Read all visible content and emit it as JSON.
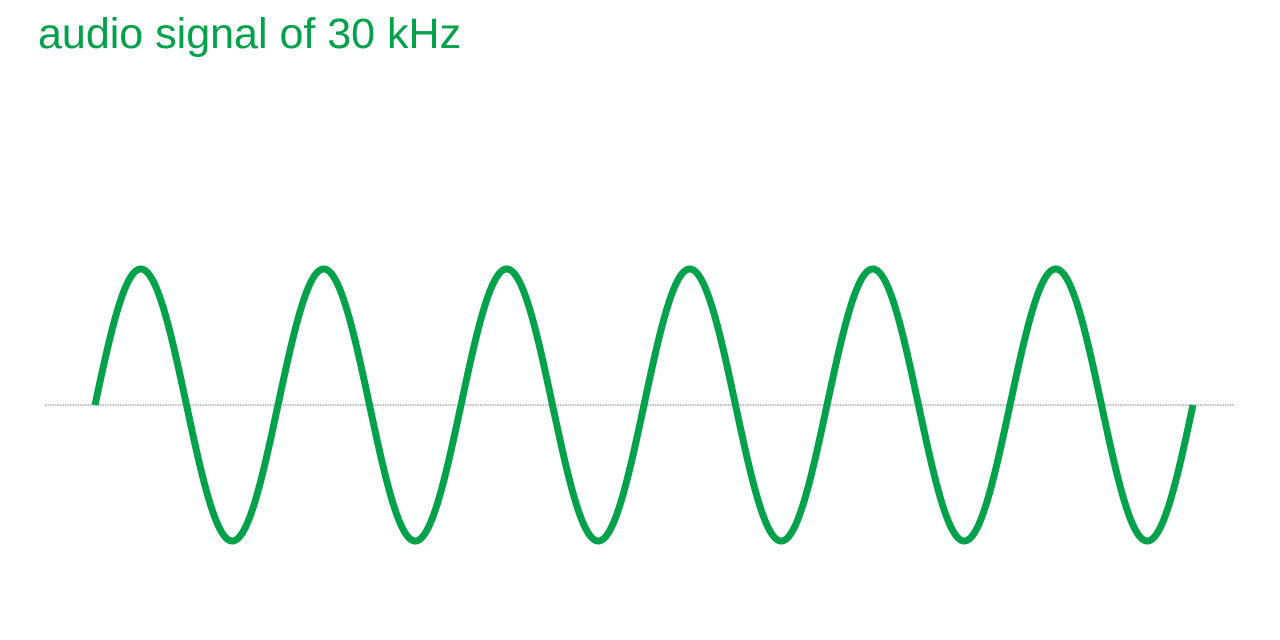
{
  "title": "audio signal of 30 kHz",
  "wave": {
    "cycles": 6,
    "color": "#00a14b",
    "baseline_color": "#555555"
  }
}
